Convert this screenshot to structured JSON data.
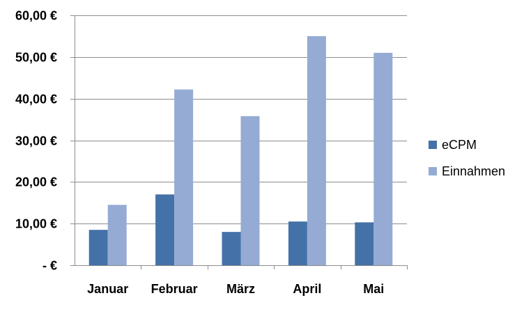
{
  "chart_data": {
    "type": "bar",
    "categories": [
      "Januar",
      "Februar",
      "März",
      "April",
      "Mai"
    ],
    "series": [
      {
        "name": "eCPM",
        "values": [
          8.5,
          17.0,
          8.0,
          10.5,
          10.3
        ],
        "color": "#4472A8"
      },
      {
        "name": "Einnahmen",
        "values": [
          14.5,
          42.2,
          35.8,
          55.0,
          51.0
        ],
        "color": "#95ABD3"
      }
    ],
    "y_ticks": [
      {
        "value": 0,
        "label": "-   €"
      },
      {
        "value": 10,
        "label": "10,00 €"
      },
      {
        "value": 20,
        "label": "20,00 €"
      },
      {
        "value": 30,
        "label": "30,00 €"
      },
      {
        "value": 40,
        "label": "40,00 €"
      },
      {
        "value": 50,
        "label": "50,00 €"
      },
      {
        "value": 60,
        "label": "60,00 €"
      }
    ],
    "ylim": [
      0,
      60
    ],
    "grid": true,
    "legend_position": "right",
    "title": "",
    "xlabel": "",
    "ylabel": ""
  }
}
